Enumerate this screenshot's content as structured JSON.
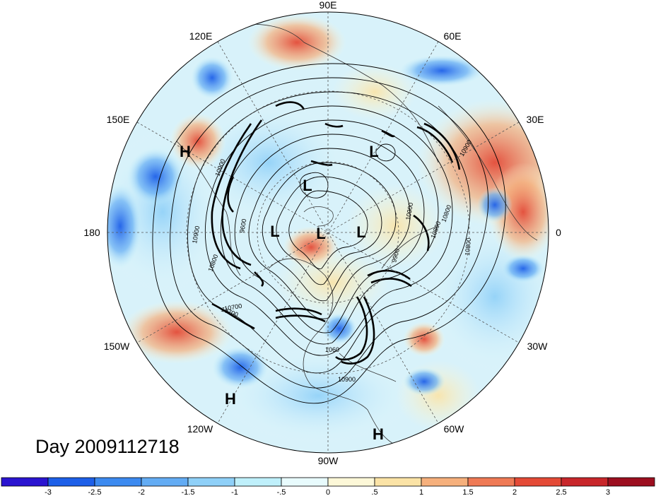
{
  "title": "Day 2009112718",
  "longitude_labels": [
    "90E",
    "60E",
    "30E",
    "0",
    "30W",
    "60W",
    "90W",
    "120W",
    "150W",
    "180",
    "150E",
    "120E"
  ],
  "pressure_centers": [
    {
      "type": "H",
      "name": "high-center-150e"
    },
    {
      "type": "L",
      "name": "low-center-north-atlantic"
    },
    {
      "type": "L",
      "name": "low-center-siberia"
    },
    {
      "type": "L",
      "name": "low-center-pole-west"
    },
    {
      "type": "L",
      "name": "low-center-pole"
    },
    {
      "type": "L",
      "name": "low-center-pole-east"
    },
    {
      "type": "H",
      "name": "high-center-north-pacific"
    },
    {
      "type": "H",
      "name": "high-center-tropical-atlantic"
    }
  ],
  "contour_labels": [
    "10900",
    "9600",
    "10800",
    "10900",
    "10700",
    "9900",
    "10800",
    "10900",
    "10900",
    "10900",
    "10800",
    "10800",
    "10700",
    "1060"
  ],
  "colorbar": {
    "colors": [
      "#2a14d0",
      "#1d5fe8",
      "#3c8af0",
      "#63acf4",
      "#8fd0f8",
      "#bff0fb",
      "#e8fbfd",
      "#fdf8d8",
      "#fbe3a6",
      "#f6b07c",
      "#ef7a55",
      "#e44a36",
      "#c8262a",
      "#9c0e1f"
    ],
    "ticks": [
      "-3",
      "-2.5",
      "-2",
      "-1.5",
      "-1",
      "-.5",
      "0",
      ".5",
      "1",
      "1.5",
      "2",
      "2.5",
      "3"
    ]
  }
}
